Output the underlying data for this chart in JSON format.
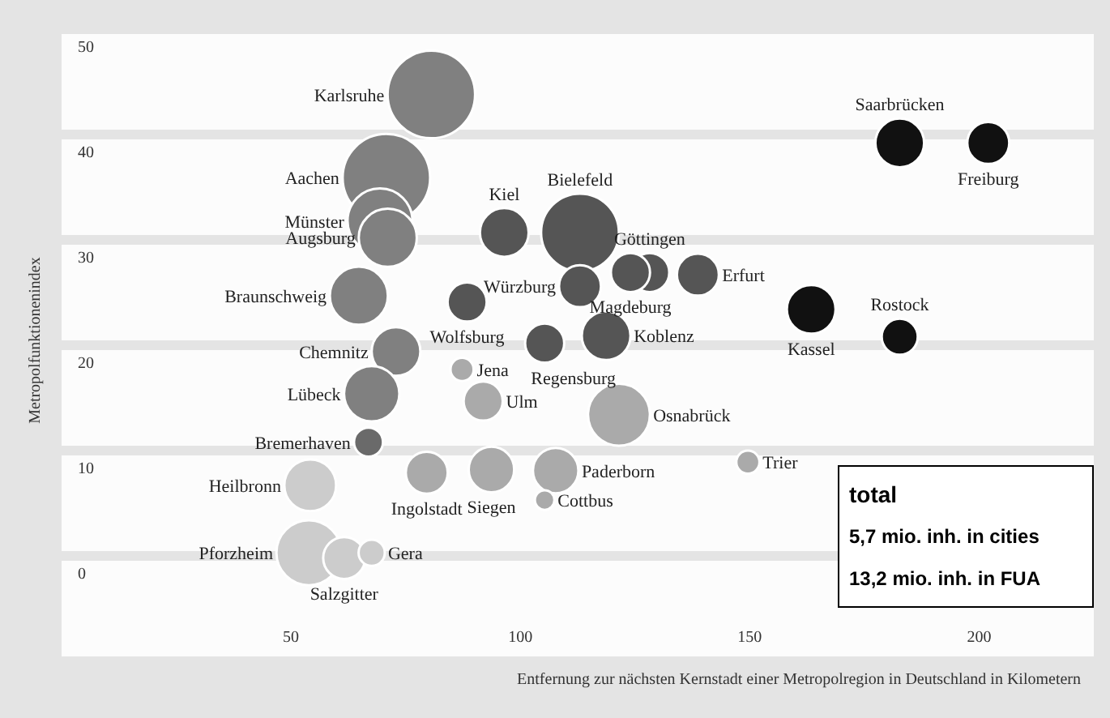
{
  "chart_data": {
    "type": "bubble",
    "xlabel": "Entfernung zur nächsten Kernstadt einer Metropolregion in Deutschland in Kilometern",
    "ylabel": "Metropolfunktionenindex",
    "x": [
      80.6,
      182.7,
      202,
      70.8,
      69.4,
      71.1,
      96.5,
      113,
      128.2,
      124,
      138.7,
      113,
      64.8,
      88.4,
      163.4,
      182.7,
      105.3,
      118.7,
      72.9,
      87.3,
      91.9,
      67.6,
      121.5,
      66.9,
      149.6,
      54.2,
      79.6,
      93.7,
      107.7,
      105.3,
      53.9,
      61.6,
      67.6
    ],
    "values": [
      43.8,
      39.2,
      39.2,
      35.9,
      31.8,
      30.2,
      30.7,
      30.7,
      26.9,
      26.9,
      26.7,
      25.6,
      24.7,
      24.1,
      23.4,
      20.8,
      20.2,
      20.9,
      19.4,
      17.7,
      14.7,
      15.4,
      13.4,
      10.8,
      8.9,
      6.7,
      7.9,
      8.2,
      8.1,
      5.3,
      0.3,
      -0.2,
      0.3
    ],
    "sizes": [
      1,
      0.31,
      0.23,
      1,
      0.55,
      0.44,
      0.31,
      0.79,
      0.2,
      0.2,
      0.23,
      0.23,
      0.44,
      0.2,
      0.31,
      0.17,
      0.2,
      0.31,
      0.31,
      0.07,
      0.2,
      0.4,
      0.5,
      0.11,
      0.07,
      0.35,
      0.23,
      0.27,
      0.27,
      0.05,
      0.55,
      0.23,
      0.09
    ],
    "colors": [
      "#808080",
      "#111111",
      "#111111",
      "#808080",
      "#808080",
      "#808080",
      "#555555",
      "#555555",
      "#555555",
      "#555555",
      "#555555",
      "#555555",
      "#808080",
      "#555555",
      "#111111",
      "#111111",
      "#555555",
      "#555555",
      "#808080",
      "#aaaaaa",
      "#aaaaaa",
      "#808080",
      "#aaaaaa",
      "#6a6a6a",
      "#aaaaaa",
      "#cccccc",
      "#aaaaaa",
      "#aaaaaa",
      "#aaaaaa",
      "#aaaaaa",
      "#cccccc",
      "#cccccc",
      "#cccccc"
    ],
    "xlim": [
      0,
      225
    ],
    "xticks": [
      50,
      100,
      150,
      200
    ],
    "ylim": [
      -10,
      50
    ],
    "yticks": [
      0,
      10,
      20,
      30,
      40,
      50
    ],
    "grid": "y",
    "legend": false,
    "annotations": [
      {
        "text": "Karlsruhe",
        "x": 80.6,
        "y": 43.8
      },
      {
        "text": "Saarbrücken",
        "x": 182.7,
        "y": 39.2
      },
      {
        "text": "Freiburg",
        "x": 202,
        "y": 39.2
      },
      {
        "text": "Aachen",
        "x": 70.8,
        "y": 35.9
      },
      {
        "text": "Münster",
        "x": 69.4,
        "y": 31.8
      },
      {
        "text": "Augsburg",
        "x": 71.1,
        "y": 30.2
      },
      {
        "text": "Kiel",
        "x": 96.5,
        "y": 30.7
      },
      {
        "text": "Bielefeld",
        "x": 113,
        "y": 30.7
      },
      {
        "text": "Göttingen",
        "x": 128.2,
        "y": 26.9
      },
      {
        "text": "Magdeburg",
        "x": 124,
        "y": 26.9
      },
      {
        "text": "Erfurt",
        "x": 138.7,
        "y": 26.7
      },
      {
        "text": "Würzburg",
        "x": 113,
        "y": 25.6
      },
      {
        "text": "Braunschweig",
        "x": 64.8,
        "y": 24.7
      },
      {
        "text": "Wolfsburg",
        "x": 88.4,
        "y": 24.1
      },
      {
        "text": "Kassel",
        "x": 163.4,
        "y": 23.4
      },
      {
        "text": "Rostock",
        "x": 182.7,
        "y": 20.8
      },
      {
        "text": "Regensburg",
        "x": 105.3,
        "y": 20.2
      },
      {
        "text": "Koblenz",
        "x": 118.7,
        "y": 20.9
      },
      {
        "text": "Chemnitz",
        "x": 72.9,
        "y": 19.4
      },
      {
        "text": "Jena",
        "x": 87.3,
        "y": 17.7
      },
      {
        "text": "Ulm",
        "x": 91.9,
        "y": 14.7
      },
      {
        "text": "Lübeck",
        "x": 67.6,
        "y": 15.4
      },
      {
        "text": "Osnabrück",
        "x": 121.5,
        "y": 13.4
      },
      {
        "text": "Bremerhaven",
        "x": 66.9,
        "y": 10.8
      },
      {
        "text": "Trier",
        "x": 149.6,
        "y": 8.9
      },
      {
        "text": "Heilbronn",
        "x": 54.2,
        "y": 6.7
      },
      {
        "text": "Ingolstadt",
        "x": 79.6,
        "y": 7.9
      },
      {
        "text": "Siegen",
        "x": 93.7,
        "y": 8.2
      },
      {
        "text": "Paderborn",
        "x": 107.7,
        "y": 8.1
      },
      {
        "text": "Cottbus",
        "x": 105.3,
        "y": 5.3
      },
      {
        "text": "Pforzheim",
        "x": 53.9,
        "y": 0.3
      },
      {
        "text": "Salzgitter",
        "x": 61.6,
        "y": -0.2
      },
      {
        "text": "Gera",
        "x": 67.6,
        "y": 0.3
      },
      "total",
      "5,7 mio. inh. in cities",
      "13,2 mio. inh. in FUA"
    ]
  }
}
